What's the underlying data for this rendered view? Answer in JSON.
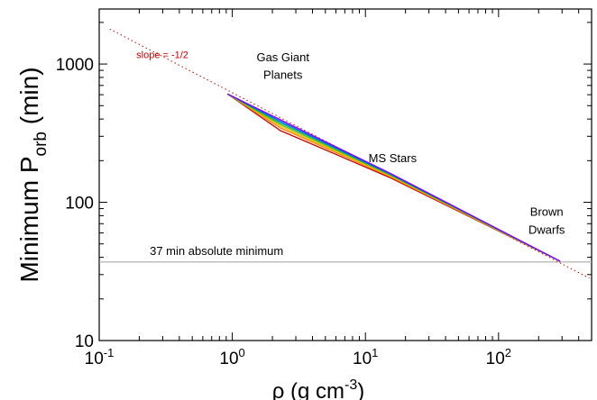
{
  "chart_data": {
    "type": "line",
    "title": "",
    "xlabel": {
      "prefix": "ρ (g cm",
      "sup": "-3",
      "suffix": ")"
    },
    "ylabel": {
      "prefix": "Minimum P",
      "sub": "orb",
      "suffix": " (min)"
    },
    "x_scale": "log",
    "y_scale": "log",
    "xlim": [
      0.1,
      500
    ],
    "ylim": [
      10,
      2500
    ],
    "x_ticks": [
      {
        "value": 0.1,
        "base": "10",
        "exp": "-1"
      },
      {
        "value": 1,
        "base": "10",
        "exp": "0"
      },
      {
        "value": 10,
        "base": "10",
        "exp": "1"
      },
      {
        "value": 100,
        "base": "10",
        "exp": "2"
      }
    ],
    "y_ticks": [
      {
        "value": 10,
        "label": "10"
      },
      {
        "value": 100,
        "label": "100"
      },
      {
        "value": 1000,
        "label": "1000"
      }
    ],
    "reference_lines": [
      {
        "type": "horizontal",
        "y": 37,
        "label": "37 min absolute minimum",
        "color": "#aaaaaa"
      },
      {
        "type": "power_law",
        "x": [
          0.12,
          480
        ],
        "y": [
          1790,
          28.3
        ],
        "label": "slope = -1/2",
        "color": "#cc0000",
        "style": "dotted"
      }
    ],
    "annotations": [
      {
        "text": [
          "Gas Giant",
          "Planets"
        ],
        "x": 2.4,
        "y": [
          1050,
          780
        ]
      },
      {
        "text": [
          "MS Stars"
        ],
        "x": 16,
        "y": [
          195
        ]
      },
      {
        "text": [
          "Brown",
          "Dwarfs"
        ],
        "x": 230,
        "y": [
          80,
          59
        ]
      }
    ],
    "series": [
      {
        "color": "#cc0000",
        "x": [
          0.92,
          2.3,
          15,
          290
        ],
        "y": [
          607,
          330,
          152,
          37.5
        ]
      },
      {
        "color": "#ff7f00",
        "x": [
          0.92,
          2.3,
          15,
          290
        ],
        "y": [
          607,
          345,
          155,
          37.5
        ]
      },
      {
        "color": "#e6c200",
        "x": [
          0.92,
          2.3,
          15,
          290
        ],
        "y": [
          607,
          355,
          157,
          37.5
        ]
      },
      {
        "color": "#66bb00",
        "x": [
          0.92,
          2.3,
          15,
          290
        ],
        "y": [
          607,
          365,
          159,
          37.5
        ]
      },
      {
        "color": "#00aa88",
        "x": [
          0.92,
          2.3,
          15,
          290
        ],
        "y": [
          607,
          375,
          161,
          37.5
        ]
      },
      {
        "color": "#0066ff",
        "x": [
          0.92,
          2.3,
          15,
          290
        ],
        "y": [
          607,
          385,
          162,
          37.5
        ]
      },
      {
        "color": "#8800ee",
        "x": [
          0.92,
          2.3,
          15,
          290
        ],
        "y": [
          607,
          395,
          164,
          37.5
        ]
      }
    ]
  }
}
